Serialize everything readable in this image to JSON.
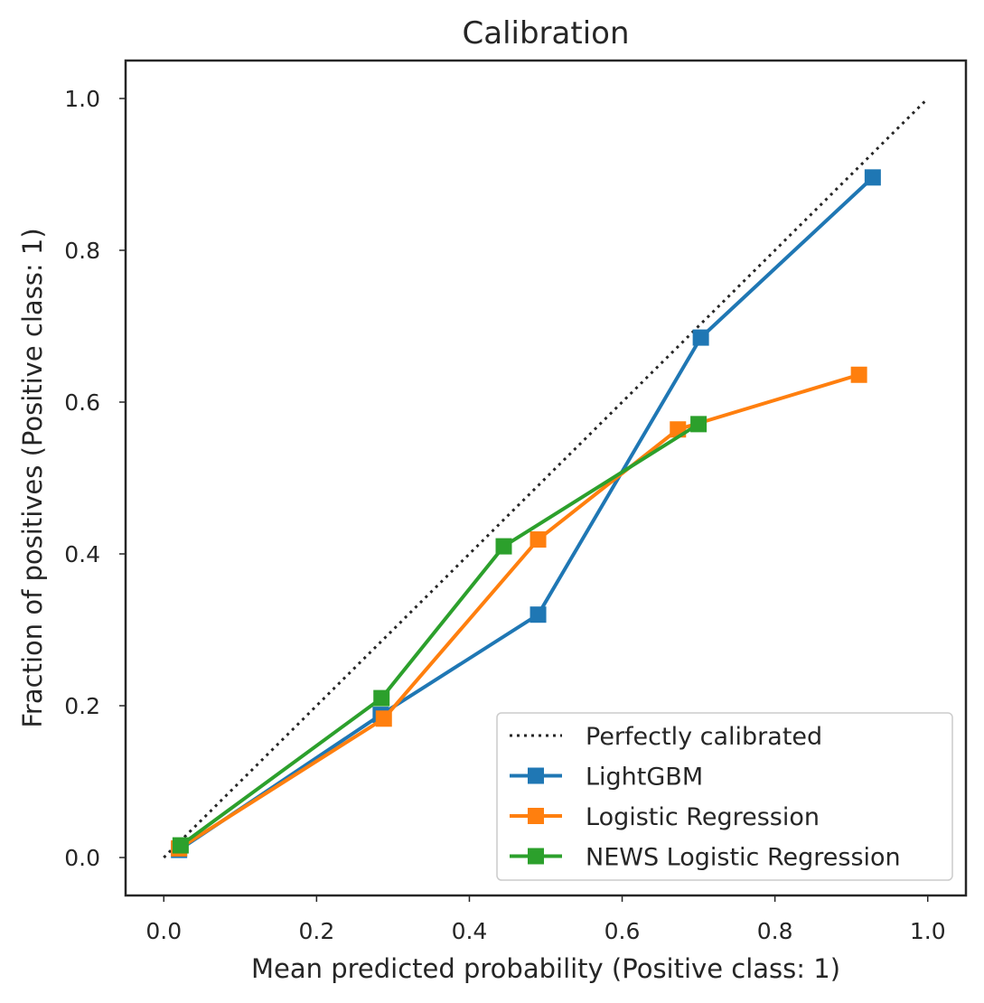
{
  "chart_data": {
    "type": "line",
    "title": "Calibration",
    "xlabel": "Mean predicted probability (Positive class: 1)",
    "ylabel": "Fraction of positives (Positive class: 1)",
    "xlim": [
      -0.05,
      1.05
    ],
    "ylim": [
      -0.05,
      1.05
    ],
    "xticks": [
      "0.0",
      "0.2",
      "0.4",
      "0.6",
      "0.8",
      "1.0"
    ],
    "yticks": [
      "0.0",
      "0.2",
      "0.4",
      "0.6",
      "0.8",
      "1.0"
    ],
    "grid": false,
    "legend_position": "lower-right",
    "reference": {
      "name": "Perfectly calibrated",
      "x": [
        0,
        1
      ],
      "y": [
        0,
        1
      ],
      "color": "#262626",
      "style": "dotted"
    },
    "series": [
      {
        "name": "LightGBM",
        "color": "#1f77b4",
        "x": [
          0.02,
          0.284,
          0.49,
          0.703,
          0.928
        ],
        "y": [
          0.01,
          0.188,
          0.32,
          0.685,
          0.896
        ]
      },
      {
        "name": "Logistic Regression",
        "color": "#ff7f0e",
        "x": [
          0.02,
          0.288,
          0.49,
          0.673,
          0.91
        ],
        "y": [
          0.012,
          0.183,
          0.419,
          0.564,
          0.636
        ]
      },
      {
        "name": "NEWS Logistic Regression",
        "color": "#2ca02c",
        "x": [
          0.022,
          0.285,
          0.445,
          0.7
        ],
        "y": [
          0.016,
          0.21,
          0.41,
          0.571
        ]
      }
    ]
  }
}
